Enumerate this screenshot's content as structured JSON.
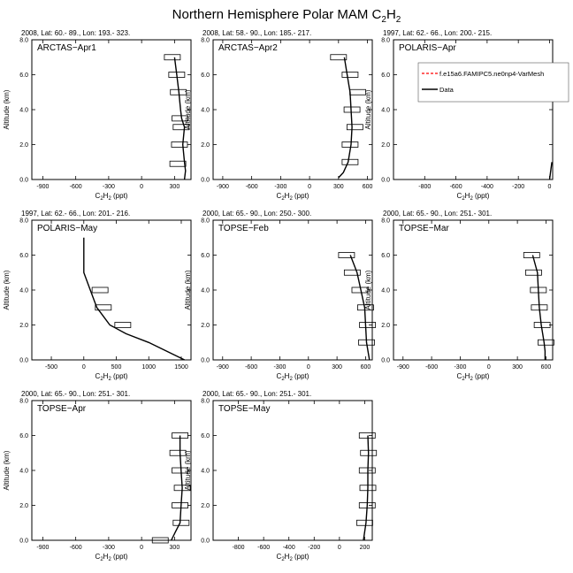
{
  "figure": {
    "title_main": "Northern Hemisphere Polar MAM C",
    "title_sub": "2",
    "title_tail": "H",
    "title_sub2": "2"
  },
  "legend": {
    "model_label": "f.e15a6.FAMIPC5.ne0np4-VarMesh",
    "data_label": "Data",
    "colors": {
      "model": "#ff0000",
      "data": "#000000"
    }
  },
  "axis_text": {
    "ylabel": "Altitude (km)",
    "xlabel_main": "C",
    "xlabel_sub": "2",
    "xlabel_mid": "H",
    "xlabel_sub2": "2",
    "xlabel_unit": " (ppt)"
  },
  "chart_data": [
    {
      "type": "line",
      "header": "2008, Lat:  60.- 89., Lon: 193.- 323.",
      "name": "ARCTAS−Apr1",
      "xlim": [
        -1000,
        450
      ],
      "xticks": [
        -900,
        -600,
        -300,
        0,
        300
      ],
      "ylim": [
        0,
        8
      ],
      "yticks": [
        0,
        2,
        4,
        6,
        8
      ],
      "data_line": [
        [
          390,
          0
        ],
        [
          400,
          0.5
        ],
        [
          390,
          1
        ],
        [
          375,
          2
        ],
        [
          390,
          3
        ],
        [
          365,
          3.5
        ],
        [
          355,
          4
        ],
        [
          340,
          5
        ],
        [
          320,
          6
        ],
        [
          300,
          7
        ]
      ],
      "boxes": [
        [
          330,
          0.9
        ],
        [
          345,
          2.0
        ],
        [
          360,
          3.0
        ],
        [
          350,
          3.5
        ],
        [
          335,
          5.0
        ],
        [
          320,
          6.0
        ],
        [
          280,
          7.0
        ]
      ]
    },
    {
      "type": "line",
      "header": "2008, Lat:  58.- 90., Lon: 185.- 217.",
      "name": "ARCTAS−Apr2",
      "xlim": [
        -1000,
        650
      ],
      "xticks": [
        -900,
        -600,
        -300,
        0,
        300,
        600
      ],
      "ylim": [
        0,
        8
      ],
      "yticks": [
        0,
        2,
        4,
        6,
        8
      ],
      "data_line": [
        [
          300,
          0.1
        ],
        [
          350,
          0.4
        ],
        [
          400,
          1
        ],
        [
          430,
          2
        ],
        [
          440,
          3
        ],
        [
          430,
          4
        ],
        [
          420,
          5
        ],
        [
          390,
          6
        ],
        [
          360,
          7
        ]
      ],
      "boxes": [
        [
          420,
          1.0
        ],
        [
          420,
          2.0
        ],
        [
          470,
          3.0
        ],
        [
          440,
          4.0
        ],
        [
          500,
          5.0
        ],
        [
          420,
          6.0
        ],
        [
          300,
          7.0
        ]
      ]
    },
    {
      "type": "line",
      "header": "1997, Lat: 62.- 66., Lon: 200.- 215.",
      "name": "POLARIS−Apr",
      "xlim": [
        -1000,
        20
      ],
      "xticks": [
        -800,
        -600,
        -400,
        -200,
        0
      ],
      "ylim": [
        0,
        8
      ],
      "yticks": [
        0,
        2,
        4,
        6,
        8
      ],
      "data_line": [
        [
          0,
          0
        ],
        [
          15,
          1
        ]
      ],
      "boxes": [],
      "legend": true
    },
    {
      "type": "line",
      "header": "1997, Lat: 62.- 66., Lon: 201.- 216.",
      "name": "POLARIS−May",
      "xlim": [
        -800,
        1650
      ],
      "xticks": [
        -500,
        0,
        500,
        1000,
        1500
      ],
      "ylim": [
        0,
        8
      ],
      "yticks": [
        0,
        2,
        4,
        6,
        8
      ],
      "data_line": [
        [
          1550,
          0
        ],
        [
          1000,
          1
        ],
        [
          650,
          1.5
        ],
        [
          400,
          2
        ],
        [
          300,
          2.5
        ],
        [
          200,
          3
        ],
        [
          100,
          4
        ],
        [
          0,
          5
        ],
        [
          0,
          6
        ],
        [
          0,
          7
        ]
      ],
      "boxes": [
        [
          600,
          2.0
        ],
        [
          300,
          3.0
        ],
        [
          250,
          4.0
        ]
      ]
    },
    {
      "type": "line",
      "header": "2000, Lat: 65.- 90., Lon: 250.- 300.",
      "name": "TOPSE−Feb",
      "xlim": [
        -1000,
        670
      ],
      "xticks": [
        -900,
        -600,
        -300,
        0,
        300,
        600
      ],
      "ylim": [
        0,
        8
      ],
      "yticks": [
        0,
        2,
        4,
        6,
        8
      ],
      "data_line": [
        [
          640,
          0
        ],
        [
          610,
          1
        ],
        [
          590,
          3
        ],
        [
          550,
          4
        ],
        [
          510,
          5
        ],
        [
          440,
          6
        ]
      ],
      "boxes": [
        [
          610,
          1.0
        ],
        [
          620,
          2.0
        ],
        [
          600,
          3.0
        ],
        [
          540,
          4.0
        ],
        [
          460,
          5.0
        ],
        [
          400,
          6.0
        ]
      ]
    },
    {
      "type": "line",
      "header": "2000, Lat: 65.- 90., Lon: 251.- 301.",
      "name": "TOPSE−Mar",
      "xlim": [
        -1000,
        670
      ],
      "xticks": [
        -900,
        -600,
        -300,
        0,
        300,
        600
      ],
      "ylim": [
        0,
        8
      ],
      "yticks": [
        0,
        2,
        4,
        6,
        8
      ],
      "data_line": [
        [
          590,
          0
        ],
        [
          590,
          0.5
        ],
        [
          580,
          1
        ],
        [
          550,
          2
        ],
        [
          530,
          3
        ],
        [
          520,
          4
        ],
        [
          510,
          5
        ],
        [
          460,
          6
        ]
      ],
      "boxes": [
        [
          600,
          1.0
        ],
        [
          560,
          2.0
        ],
        [
          530,
          3.0
        ],
        [
          520,
          4.0
        ],
        [
          470,
          5.0
        ],
        [
          450,
          6.0
        ]
      ]
    },
    {
      "type": "line",
      "header": "2000, Lat: 65.- 90., Lon: 251.- 301.",
      "name": "TOPSE−Apr",
      "xlim": [
        -1000,
        450
      ],
      "xticks": [
        -900,
        -600,
        -300,
        0,
        300
      ],
      "ylim": [
        0,
        8
      ],
      "yticks": [
        0,
        2,
        4,
        6,
        8
      ],
      "data_line": [
        [
          270,
          0
        ],
        [
          310,
          0.5
        ],
        [
          350,
          1
        ],
        [
          360,
          2
        ],
        [
          370,
          3
        ],
        [
          360,
          4
        ],
        [
          350,
          5
        ],
        [
          350,
          6
        ]
      ],
      "boxes": [
        [
          170,
          0.0
        ],
        [
          360,
          1.0
        ],
        [
          350,
          2.0
        ],
        [
          370,
          3.0
        ],
        [
          350,
          4.0
        ],
        [
          330,
          5.0
        ],
        [
          350,
          6.0
        ]
      ]
    },
    {
      "type": "line",
      "header": "2000, Lat: 65.- 90., Lon: 251.- 301.",
      "name": "TOPSE−May",
      "xlim": [
        -1000,
        260
      ],
      "xticks": [
        -800,
        -600,
        -400,
        -200,
        0,
        200
      ],
      "ylim": [
        0,
        8
      ],
      "yticks": [
        0,
        2,
        4,
        6,
        8
      ],
      "data_line": [
        [
          190,
          0
        ],
        [
          210,
          1
        ],
        [
          220,
          2
        ],
        [
          225,
          3
        ],
        [
          225,
          4
        ],
        [
          230,
          5
        ],
        [
          225,
          6
        ]
      ],
      "boxes": [
        [
          200,
          1.0
        ],
        [
          220,
          2.0
        ],
        [
          225,
          3.0
        ],
        [
          220,
          4.0
        ],
        [
          230,
          5.0
        ],
        [
          220,
          6.0
        ]
      ]
    }
  ]
}
